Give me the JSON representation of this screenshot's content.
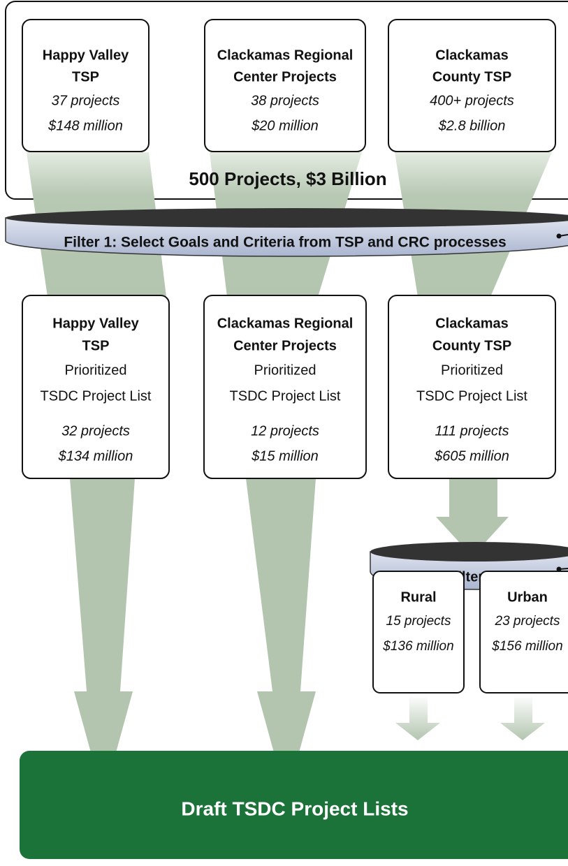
{
  "top": {
    "sources": [
      {
        "name": [
          "Happy Valley",
          "TSP"
        ],
        "projects": "37 projects",
        "cost": "$148 million"
      },
      {
        "name": [
          "Clackamas Regional",
          "Center Projects"
        ],
        "projects": "38 projects",
        "cost": "$20 million"
      },
      {
        "name": [
          "Clackamas",
          "County TSP"
        ],
        "projects": "400+ projects",
        "cost": "$2.8 billion"
      }
    ],
    "total": "500 Projects, $3 Billion"
  },
  "filter1": "Filter 1: Select Goals and Criteria from TSP and CRC processes",
  "prioritized": [
    {
      "name": [
        "Happy Valley",
        "TSP"
      ],
      "list": [
        "Prioritized",
        "TSDC Project List"
      ],
      "projects": "32 projects",
      "cost": "$134 million"
    },
    {
      "name": [
        "Clackamas Regional",
        "Center Projects"
      ],
      "list": [
        "Prioritized",
        "TSDC Project List"
      ],
      "projects": "12 projects",
      "cost": "$15 million"
    },
    {
      "name": [
        "Clackamas",
        "County TSP"
      ],
      "list": [
        "Prioritized",
        "TSDC Project List"
      ],
      "projects": "111 projects",
      "cost": "$605 million"
    }
  ],
  "filter2": "Filter 2",
  "split": [
    {
      "name": "Rural",
      "projects": "15 projects",
      "cost": "$136 million"
    },
    {
      "name": "Urban",
      "projects": "23 projects",
      "cost": "$156 million"
    }
  ],
  "output": "Draft TSDC Project Lists"
}
